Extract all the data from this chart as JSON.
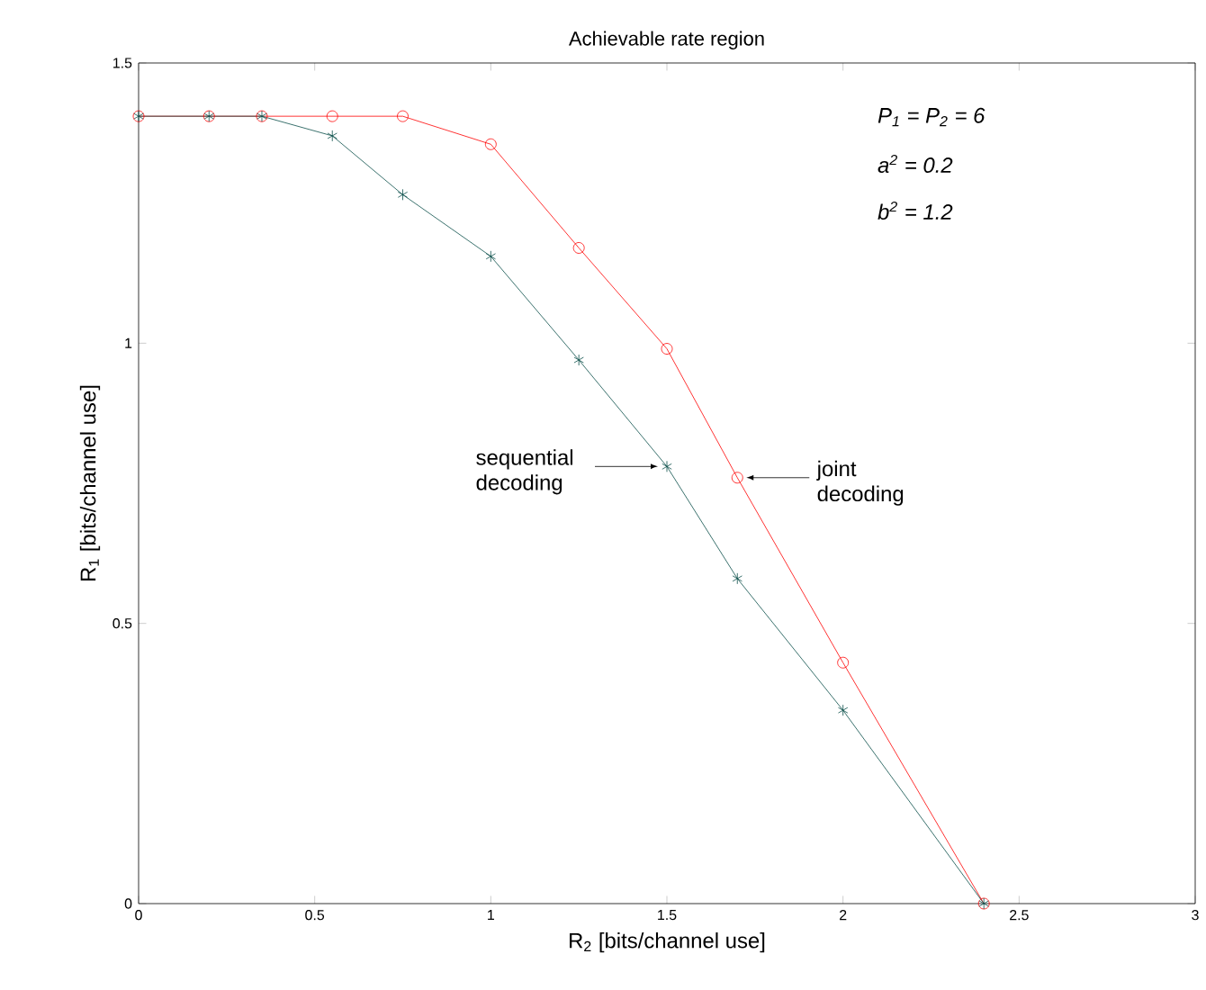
{
  "chart_data": {
    "type": "line",
    "title": "Achievable rate region",
    "xlabel": "R$_{2}$ [bits/channel use]",
    "ylabel": "R$_{1}$ [bits/channel use]",
    "xlim": [
      0,
      3
    ],
    "ylim": [
      0,
      1.5
    ],
    "xticks": [
      0,
      0.5,
      1,
      1.5,
      2,
      2.5,
      3
    ],
    "yticks": [
      0,
      0.5,
      1,
      1.5
    ],
    "grid": false,
    "series": [
      {
        "color": "#ff0000",
        "marker": "circle",
        "x": [
          0,
          0.2,
          0.35,
          0.55,
          0.75,
          1.0,
          1.25,
          1.5,
          1.7,
          2.0,
          2.4
        ],
        "values": [
          1.405,
          1.405,
          1.405,
          1.405,
          1.405,
          1.355,
          1.17,
          0.99,
          0.76,
          0.43,
          0
        ]
      },
      {
        "color": "#0b4f4a",
        "marker": "cross",
        "x": [
          0,
          0.2,
          0.35,
          0.55,
          0.75,
          1.0,
          1.25,
          1.5,
          1.7,
          2.0,
          2.4
        ],
        "values": [
          1.405,
          1.405,
          1.405,
          1.37,
          1.265,
          1.155,
          0.97,
          0.78,
          0.58,
          0.345,
          0
        ]
      }
    ],
    "annotations": [
      {
        "text": "sequential decoding",
        "x": 1.5,
        "y": 0.78
      },
      {
        "text": "joint decoding",
        "x": 1.7,
        "y": 0.76
      },
      "P$_{1}$ = P$_{2}$ = 6",
      "a$^{2}$ = 0.2",
      "b$^{2}$ = 1.2"
    ]
  }
}
